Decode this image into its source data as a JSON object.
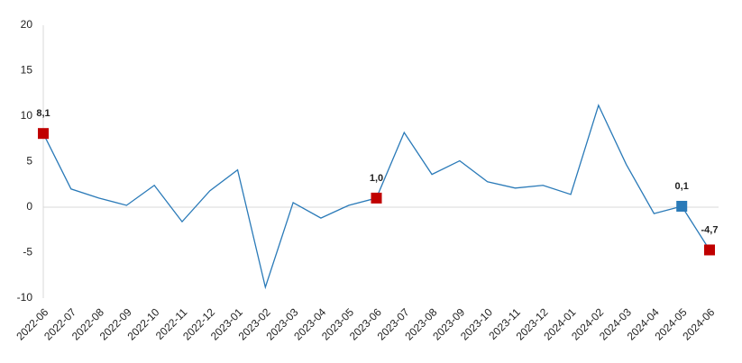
{
  "chart_data": {
    "type": "line",
    "categories": [
      "2022-06",
      "2022-07",
      "2022-08",
      "2022-09",
      "2022-10",
      "2022-11",
      "2022-12",
      "2023-01",
      "2023-02",
      "2023-03",
      "2023-04",
      "2023-05",
      "2023-06",
      "2023-07",
      "2023-08",
      "2023-09",
      "2023-10",
      "2023-11",
      "2023-12",
      "2024-01",
      "2024-02",
      "2024-03",
      "2024-04",
      "2024-05",
      "2024-06"
    ],
    "series": [
      {
        "color": "#2a7ab8",
        "values": [
          8.1,
          2.0,
          1.0,
          0.2,
          2.4,
          -1.6,
          1.8,
          4.1,
          -8.8,
          0.5,
          -1.2,
          0.2,
          1.0,
          8.2,
          3.6,
          5.1,
          2.8,
          2.1,
          2.4,
          1.4,
          11.2,
          4.7,
          -0.7,
          0.1,
          -4.7
        ]
      }
    ],
    "value_labels": [
      "8,1",
      null,
      null,
      null,
      null,
      null,
      null,
      null,
      null,
      null,
      null,
      null,
      "1,0",
      null,
      null,
      null,
      null,
      null,
      null,
      null,
      null,
      null,
      null,
      "0,1",
      "-4,7"
    ],
    "marker_colors": [
      "#c00000",
      null,
      null,
      null,
      null,
      null,
      null,
      null,
      null,
      null,
      null,
      null,
      "#c00000",
      null,
      null,
      null,
      null,
      null,
      null,
      null,
      null,
      null,
      null,
      "#2a7ab8",
      "#c00000"
    ],
    "ylim": [
      -10,
      20
    ],
    "yticks": [
      -10,
      -5,
      0,
      5,
      10,
      15,
      20
    ],
    "zero_line": true
  }
}
